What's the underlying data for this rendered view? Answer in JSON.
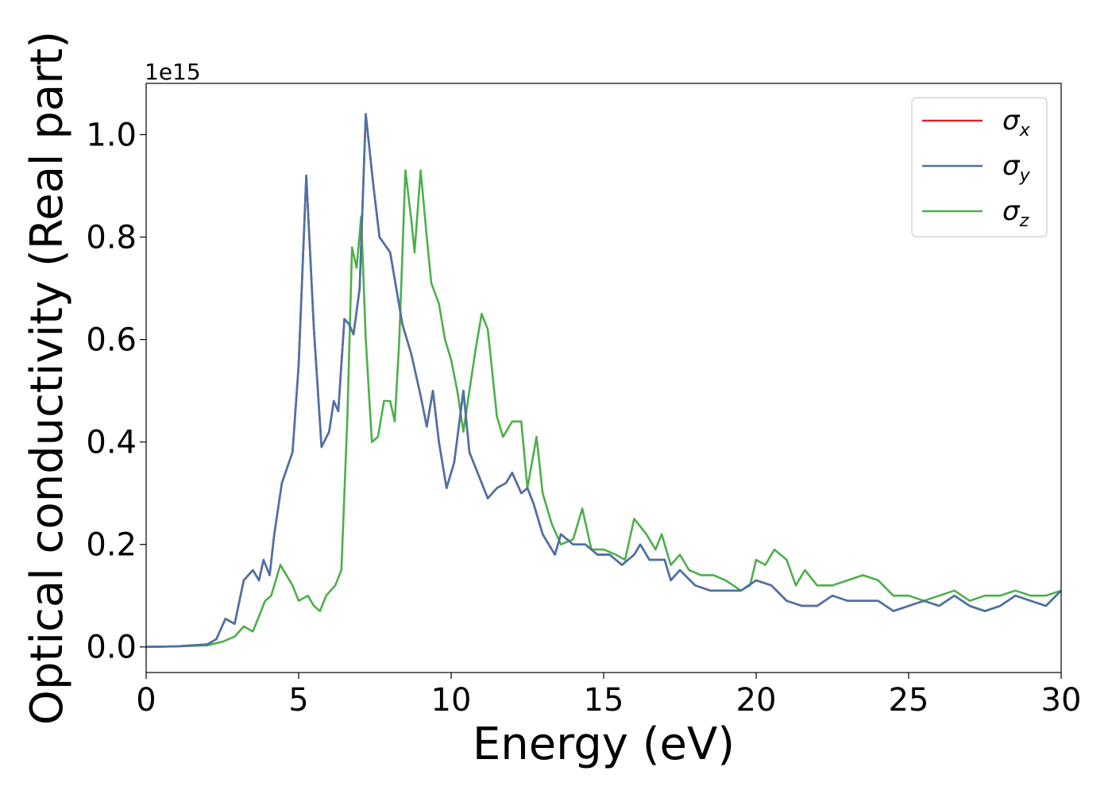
{
  "chart_data": {
    "type": "line",
    "xlabel": "Energy (eV)",
    "ylabel": "Optical conductivity (Real part)",
    "y_offset_label": "1e15",
    "xlim": [
      0,
      30
    ],
    "ylim": [
      -0.05,
      1.1
    ],
    "x_ticks": [
      0,
      5,
      10,
      15,
      20,
      25,
      30
    ],
    "x_tick_labels": [
      "0",
      "5",
      "10",
      "15",
      "20",
      "25",
      "30"
    ],
    "y_ticks": [
      0.0,
      0.2,
      0.4,
      0.6,
      0.8,
      1.0
    ],
    "y_tick_labels": [
      "0.0",
      "0.2",
      "0.4",
      "0.6",
      "0.8",
      "1.0"
    ],
    "grid": false,
    "legend_position": "top-right",
    "series": [
      {
        "name": "σx",
        "symbol": "σ",
        "subscript": "x",
        "color": "#d62728",
        "points": [
          [
            0,
            0
          ],
          [
            1,
            0.001
          ],
          [
            2,
            0.005
          ],
          [
            2.3,
            0.015
          ],
          [
            2.6,
            0.055
          ],
          [
            2.9,
            0.045
          ],
          [
            3.2,
            0.13
          ],
          [
            3.5,
            0.15
          ],
          [
            3.7,
            0.13
          ],
          [
            3.85,
            0.17
          ],
          [
            4.05,
            0.14
          ],
          [
            4.2,
            0.22
          ],
          [
            4.45,
            0.32
          ],
          [
            4.8,
            0.38
          ],
          [
            5.0,
            0.55
          ],
          [
            5.25,
            0.92
          ],
          [
            5.5,
            0.62
          ],
          [
            5.75,
            0.39
          ],
          [
            6.0,
            0.42
          ],
          [
            6.15,
            0.48
          ],
          [
            6.3,
            0.46
          ],
          [
            6.5,
            0.64
          ],
          [
            6.65,
            0.63
          ],
          [
            6.8,
            0.61
          ],
          [
            7.0,
            0.7
          ],
          [
            7.2,
            1.04
          ],
          [
            7.45,
            0.9
          ],
          [
            7.65,
            0.8
          ],
          [
            8.0,
            0.77
          ],
          [
            8.2,
            0.7
          ],
          [
            8.4,
            0.63
          ],
          [
            8.7,
            0.57
          ],
          [
            9.0,
            0.49
          ],
          [
            9.2,
            0.43
          ],
          [
            9.4,
            0.5
          ],
          [
            9.6,
            0.4
          ],
          [
            9.85,
            0.31
          ],
          [
            10.1,
            0.36
          ],
          [
            10.4,
            0.5
          ],
          [
            10.6,
            0.38
          ],
          [
            10.8,
            0.35
          ],
          [
            11.2,
            0.29
          ],
          [
            11.5,
            0.31
          ],
          [
            11.8,
            0.32
          ],
          [
            12.0,
            0.34
          ],
          [
            12.3,
            0.3
          ],
          [
            12.5,
            0.31
          ],
          [
            12.7,
            0.28
          ],
          [
            13.0,
            0.22
          ],
          [
            13.4,
            0.18
          ],
          [
            13.6,
            0.22
          ],
          [
            14.0,
            0.2
          ],
          [
            14.4,
            0.2
          ],
          [
            14.8,
            0.18
          ],
          [
            15.2,
            0.18
          ],
          [
            15.6,
            0.16
          ],
          [
            16.0,
            0.18
          ],
          [
            16.2,
            0.2
          ],
          [
            16.5,
            0.17
          ],
          [
            17.0,
            0.17
          ],
          [
            17.2,
            0.13
          ],
          [
            17.5,
            0.15
          ],
          [
            18.0,
            0.12
          ],
          [
            18.5,
            0.11
          ],
          [
            19.0,
            0.11
          ],
          [
            19.5,
            0.11
          ],
          [
            20.0,
            0.13
          ],
          [
            20.5,
            0.12
          ],
          [
            21.0,
            0.09
          ],
          [
            21.5,
            0.08
          ],
          [
            22.0,
            0.08
          ],
          [
            22.5,
            0.1
          ],
          [
            23.0,
            0.09
          ],
          [
            23.5,
            0.09
          ],
          [
            24.0,
            0.09
          ],
          [
            24.5,
            0.07
          ],
          [
            25.0,
            0.08
          ],
          [
            25.5,
            0.09
          ],
          [
            26.0,
            0.08
          ],
          [
            26.5,
            0.1
          ],
          [
            27.0,
            0.08
          ],
          [
            27.5,
            0.07
          ],
          [
            28.0,
            0.08
          ],
          [
            28.5,
            0.1
          ],
          [
            29.0,
            0.09
          ],
          [
            29.5,
            0.08
          ],
          [
            30.0,
            0.11
          ]
        ]
      },
      {
        "name": "σy",
        "symbol": "σ",
        "subscript": "y",
        "color": "#4a72a8",
        "points": [
          [
            0,
            0
          ],
          [
            1,
            0.001
          ],
          [
            2,
            0.005
          ],
          [
            2.3,
            0.015
          ],
          [
            2.6,
            0.055
          ],
          [
            2.9,
            0.045
          ],
          [
            3.2,
            0.13
          ],
          [
            3.5,
            0.15
          ],
          [
            3.7,
            0.13
          ],
          [
            3.85,
            0.17
          ],
          [
            4.05,
            0.14
          ],
          [
            4.2,
            0.22
          ],
          [
            4.45,
            0.32
          ],
          [
            4.8,
            0.38
          ],
          [
            5.0,
            0.55
          ],
          [
            5.25,
            0.92
          ],
          [
            5.5,
            0.62
          ],
          [
            5.75,
            0.39
          ],
          [
            6.0,
            0.42
          ],
          [
            6.15,
            0.48
          ],
          [
            6.3,
            0.46
          ],
          [
            6.5,
            0.64
          ],
          [
            6.65,
            0.63
          ],
          [
            6.8,
            0.61
          ],
          [
            7.0,
            0.7
          ],
          [
            7.2,
            1.04
          ],
          [
            7.45,
            0.9
          ],
          [
            7.65,
            0.8
          ],
          [
            8.0,
            0.77
          ],
          [
            8.2,
            0.7
          ],
          [
            8.4,
            0.63
          ],
          [
            8.7,
            0.57
          ],
          [
            9.0,
            0.49
          ],
          [
            9.2,
            0.43
          ],
          [
            9.4,
            0.5
          ],
          [
            9.6,
            0.4
          ],
          [
            9.85,
            0.31
          ],
          [
            10.1,
            0.36
          ],
          [
            10.4,
            0.5
          ],
          [
            10.6,
            0.38
          ],
          [
            10.8,
            0.35
          ],
          [
            11.2,
            0.29
          ],
          [
            11.5,
            0.31
          ],
          [
            11.8,
            0.32
          ],
          [
            12.0,
            0.34
          ],
          [
            12.3,
            0.3
          ],
          [
            12.5,
            0.31
          ],
          [
            12.7,
            0.28
          ],
          [
            13.0,
            0.22
          ],
          [
            13.4,
            0.18
          ],
          [
            13.6,
            0.22
          ],
          [
            14.0,
            0.2
          ],
          [
            14.4,
            0.2
          ],
          [
            14.8,
            0.18
          ],
          [
            15.2,
            0.18
          ],
          [
            15.6,
            0.16
          ],
          [
            16.0,
            0.18
          ],
          [
            16.2,
            0.2
          ],
          [
            16.5,
            0.17
          ],
          [
            17.0,
            0.17
          ],
          [
            17.2,
            0.13
          ],
          [
            17.5,
            0.15
          ],
          [
            18.0,
            0.12
          ],
          [
            18.5,
            0.11
          ],
          [
            19.0,
            0.11
          ],
          [
            19.5,
            0.11
          ],
          [
            20.0,
            0.13
          ],
          [
            20.5,
            0.12
          ],
          [
            21.0,
            0.09
          ],
          [
            21.5,
            0.08
          ],
          [
            22.0,
            0.08
          ],
          [
            22.5,
            0.1
          ],
          [
            23.0,
            0.09
          ],
          [
            23.5,
            0.09
          ],
          [
            24.0,
            0.09
          ],
          [
            24.5,
            0.07
          ],
          [
            25.0,
            0.08
          ],
          [
            25.5,
            0.09
          ],
          [
            26.0,
            0.08
          ],
          [
            26.5,
            0.1
          ],
          [
            27.0,
            0.08
          ],
          [
            27.5,
            0.07
          ],
          [
            28.0,
            0.08
          ],
          [
            28.5,
            0.1
          ],
          [
            29.0,
            0.09
          ],
          [
            29.5,
            0.08
          ],
          [
            30.0,
            0.11
          ]
        ]
      },
      {
        "name": "σz",
        "symbol": "σ",
        "subscript": "z",
        "color": "#4daf4a",
        "points": [
          [
            0,
            0
          ],
          [
            1,
            0.001
          ],
          [
            2,
            0.003
          ],
          [
            2.5,
            0.01
          ],
          [
            2.9,
            0.02
          ],
          [
            3.2,
            0.04
          ],
          [
            3.5,
            0.03
          ],
          [
            3.9,
            0.09
          ],
          [
            4.1,
            0.1
          ],
          [
            4.4,
            0.16
          ],
          [
            4.8,
            0.12
          ],
          [
            5.0,
            0.09
          ],
          [
            5.3,
            0.1
          ],
          [
            5.5,
            0.08
          ],
          [
            5.7,
            0.07
          ],
          [
            5.9,
            0.1
          ],
          [
            6.2,
            0.12
          ],
          [
            6.4,
            0.15
          ],
          [
            6.6,
            0.45
          ],
          [
            6.75,
            0.78
          ],
          [
            6.9,
            0.74
          ],
          [
            7.05,
            0.84
          ],
          [
            7.2,
            0.6
          ],
          [
            7.4,
            0.4
          ],
          [
            7.6,
            0.41
          ],
          [
            7.8,
            0.48
          ],
          [
            8.0,
            0.48
          ],
          [
            8.15,
            0.44
          ],
          [
            8.3,
            0.6
          ],
          [
            8.5,
            0.93
          ],
          [
            8.7,
            0.83
          ],
          [
            8.8,
            0.77
          ],
          [
            9.0,
            0.93
          ],
          [
            9.2,
            0.8
          ],
          [
            9.35,
            0.71
          ],
          [
            9.6,
            0.67
          ],
          [
            9.8,
            0.6
          ],
          [
            10.0,
            0.56
          ],
          [
            10.2,
            0.5
          ],
          [
            10.4,
            0.42
          ],
          [
            10.6,
            0.5
          ],
          [
            10.8,
            0.58
          ],
          [
            11.0,
            0.65
          ],
          [
            11.2,
            0.62
          ],
          [
            11.5,
            0.45
          ],
          [
            11.7,
            0.41
          ],
          [
            12.0,
            0.44
          ],
          [
            12.3,
            0.44
          ],
          [
            12.5,
            0.31
          ],
          [
            12.8,
            0.41
          ],
          [
            13.0,
            0.3
          ],
          [
            13.3,
            0.24
          ],
          [
            13.6,
            0.2
          ],
          [
            14.0,
            0.21
          ],
          [
            14.3,
            0.27
          ],
          [
            14.6,
            0.19
          ],
          [
            15.0,
            0.19
          ],
          [
            15.4,
            0.18
          ],
          [
            15.7,
            0.17
          ],
          [
            16.0,
            0.25
          ],
          [
            16.4,
            0.22
          ],
          [
            16.7,
            0.19
          ],
          [
            16.9,
            0.22
          ],
          [
            17.2,
            0.16
          ],
          [
            17.5,
            0.18
          ],
          [
            17.8,
            0.15
          ],
          [
            18.2,
            0.14
          ],
          [
            18.6,
            0.14
          ],
          [
            19.0,
            0.13
          ],
          [
            19.5,
            0.11
          ],
          [
            19.8,
            0.12
          ],
          [
            20.0,
            0.17
          ],
          [
            20.3,
            0.16
          ],
          [
            20.6,
            0.19
          ],
          [
            21.0,
            0.17
          ],
          [
            21.3,
            0.12
          ],
          [
            21.6,
            0.15
          ],
          [
            22.0,
            0.12
          ],
          [
            22.5,
            0.12
          ],
          [
            23.0,
            0.13
          ],
          [
            23.5,
            0.14
          ],
          [
            24.0,
            0.13
          ],
          [
            24.5,
            0.1
          ],
          [
            25.0,
            0.1
          ],
          [
            25.5,
            0.09
          ],
          [
            26.0,
            0.1
          ],
          [
            26.5,
            0.11
          ],
          [
            27.0,
            0.09
          ],
          [
            27.5,
            0.1
          ],
          [
            28.0,
            0.1
          ],
          [
            28.5,
            0.11
          ],
          [
            29.0,
            0.1
          ],
          [
            29.5,
            0.1
          ],
          [
            30.0,
            0.11
          ]
        ]
      }
    ]
  }
}
